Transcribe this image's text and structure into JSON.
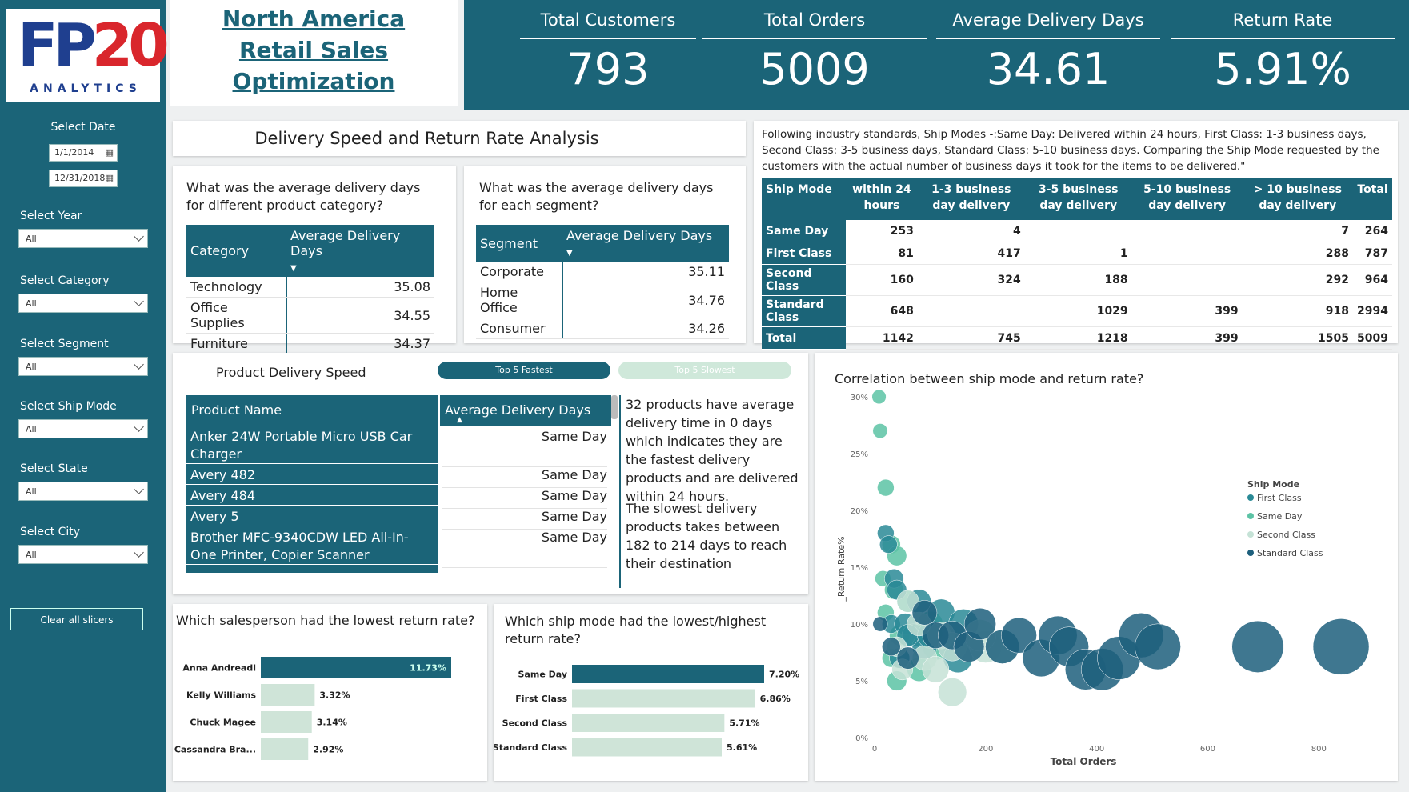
{
  "logo": {
    "part1": "FP",
    "part2": "20",
    "sub": "ANALYTICS"
  },
  "title": {
    "line1": "North America ",
    "line2": "Retail Sales",
    "line3": "Optimization"
  },
  "kpis": [
    {
      "label": "Total Customers",
      "value": "793"
    },
    {
      "label": "Total Orders",
      "value": "5009"
    },
    {
      "label": "Average Delivery Days",
      "value": "34.61"
    },
    {
      "label": "Return Rate",
      "value": "5.91%"
    }
  ],
  "sidebar": {
    "date_label": "Select Date",
    "date_from": "1/1/2014",
    "date_to": "12/31/2018",
    "filters": [
      {
        "label": "Select Year",
        "value": "All"
      },
      {
        "label": "Select Category",
        "value": "All"
      },
      {
        "label": "Select Segment",
        "value": "All"
      },
      {
        "label": "Select Ship Mode",
        "value": "All"
      },
      {
        "label": "Select State",
        "value": "All"
      },
      {
        "label": "Select City",
        "value": "All"
      }
    ],
    "clear_label": "Clear all slicers"
  },
  "section_title": "Delivery Speed and Return Rate Analysis",
  "category_card": {
    "title": "What was the average delivery days for different product category?",
    "headers": [
      "Category",
      "Average Delivery Days"
    ],
    "rows": [
      {
        "name": "Technology",
        "value": "35.08"
      },
      {
        "name": "Office Supplies",
        "value": "34.55"
      },
      {
        "name": "Furniture",
        "value": "34.37"
      }
    ]
  },
  "segment_card": {
    "title": "What was the average delivery days for each segment?",
    "headers": [
      "Segment",
      "Average Delivery Days"
    ],
    "rows": [
      {
        "name": "Corporate",
        "value": "35.11"
      },
      {
        "name": "Home Office",
        "value": "34.76"
      },
      {
        "name": "Consumer",
        "value": "34.26"
      }
    ]
  },
  "ship_note": "Following industry standards, Ship Modes -:Same Day: Delivered within 24 hours, First Class: 1-3 business days, Second Class: 3-5 business days, Standard Class: 5-10 business days. Comparing the Ship Mode requested by the customers with the actual number of business days it took for the items to be delivered.\"",
  "ship_table": {
    "headers": [
      "Ship Mode",
      "within 24 hours",
      "1-3 business day delivery",
      "3-5 business day delivery",
      "5-10 business day delivery",
      "> 10 business day delivery",
      "Total"
    ],
    "rows": [
      {
        "mode": "Same Day",
        "cells": [
          "253",
          "4",
          "",
          "",
          "7",
          "264"
        ]
      },
      {
        "mode": "First Class",
        "cells": [
          "81",
          "417",
          "1",
          "",
          "288",
          "787"
        ]
      },
      {
        "mode": "Second Class",
        "cells": [
          "160",
          "324",
          "188",
          "",
          "292",
          "964"
        ]
      },
      {
        "mode": "Standard Class",
        "cells": [
          "648",
          "",
          "1029",
          "399",
          "918",
          "2994"
        ]
      },
      {
        "mode": "Total",
        "cells": [
          "1142",
          "745",
          "1218",
          "399",
          "1505",
          "5009"
        ]
      }
    ]
  },
  "product_speed": {
    "title": "Product Delivery Speed",
    "btn_fastest": "Top 5 Fastest",
    "btn_slowest": "Top 5 Slowest",
    "headers": [
      "Product Name",
      "Average Delivery Days"
    ],
    "rows": [
      {
        "name": "Anker 24W Portable Micro USB Car Charger",
        "value": "Same Day"
      },
      {
        "name": "Avery 482",
        "value": "Same Day"
      },
      {
        "name": "Avery 484",
        "value": "Same Day"
      },
      {
        "name": "Avery 5",
        "value": "Same Day"
      },
      {
        "name": "Brother MFC-9340CDW LED All-In-One Printer, Copier Scanner",
        "value": "Same Day"
      }
    ],
    "note1": "32 products have average delivery time in 0 days which indicates they are the fastest delivery products  and are delivered within 24 hours.",
    "note2": "The slowest delivery products takes between 182 to 214 days to reach their destination"
  },
  "salesperson_chart": {
    "title": "Which salesperson had the lowest return rate?",
    "chart_data": {
      "type": "bar",
      "categories": [
        "Anna Andreadi",
        "Kelly Williams",
        "Chuck Magee",
        "Cassandra Bra..."
      ],
      "values": [
        11.73,
        3.32,
        3.14,
        2.92
      ],
      "labels": [
        "11.73%",
        "3.32%",
        "3.14%",
        "2.92%"
      ]
    }
  },
  "shipmode_chart": {
    "title": "Which ship mode had the lowest/highest return rate?",
    "chart_data": {
      "type": "bar",
      "categories": [
        "Same Day",
        "First Class",
        "Second Class",
        "Standard Class"
      ],
      "values": [
        7.2,
        6.86,
        5.71,
        5.61
      ],
      "labels": [
        "7.20%",
        "6.86%",
        "5.71%",
        "5.61%"
      ]
    }
  },
  "scatter": {
    "title": "Correlation between ship mode and return rate?",
    "chart_data": {
      "type": "scatter",
      "xlabel": "Total Orders",
      "ylabel": "_Return Rate%",
      "xlim": [
        0,
        850
      ],
      "ylim": [
        0,
        30
      ],
      "xticks": [
        "0",
        "200",
        "400",
        "600",
        "800"
      ],
      "yticks": [
        "0%",
        "5%",
        "10%",
        "15%",
        "20%",
        "25%",
        "30%"
      ],
      "legend_title": "Ship Mode",
      "legend": [
        {
          "name": "First Class",
          "color": "#2a8a96"
        },
        {
          "name": "Same Day",
          "color": "#5cc3a5"
        },
        {
          "name": "Second Class",
          "color": "#c5e2d6"
        },
        {
          "name": "Standard Class",
          "color": "#1d5f7c"
        }
      ],
      "series": [
        {
          "name": "Same Day",
          "points": [
            [
              8,
              30
            ],
            [
              10,
              27
            ],
            [
              20,
              22
            ],
            [
              30,
              17
            ],
            [
              15,
              14
            ],
            [
              40,
              16
            ],
            [
              35,
              13
            ],
            [
              60,
              12
            ],
            [
              20,
              11
            ],
            [
              45,
              9
            ],
            [
              30,
              7
            ],
            [
              80,
              6
            ],
            [
              110,
              8
            ],
            [
              40,
              5
            ],
            [
              100,
              10
            ]
          ]
        },
        {
          "name": "First Class",
          "points": [
            [
              20,
              18
            ],
            [
              25,
              17
            ],
            [
              35,
              14
            ],
            [
              40,
              13
            ],
            [
              30,
              10
            ],
            [
              55,
              10
            ],
            [
              70,
              9
            ],
            [
              90,
              8
            ],
            [
              45,
              7
            ],
            [
              60,
              9
            ],
            [
              120,
              11
            ],
            [
              140,
              8
            ],
            [
              150,
              7
            ],
            [
              80,
              12
            ],
            [
              100,
              9
            ],
            [
              160,
              10
            ]
          ]
        },
        {
          "name": "Second Class",
          "points": [
            [
              60,
              12
            ],
            [
              80,
              10
            ],
            [
              40,
              8
            ],
            [
              120,
              9
            ],
            [
              140,
              8
            ],
            [
              170,
              8
            ],
            [
              200,
              8
            ],
            [
              230,
              8
            ],
            [
              50,
              6
            ],
            [
              90,
              7
            ],
            [
              140,
              4
            ],
            [
              110,
              6
            ],
            [
              190,
              9
            ]
          ]
        },
        {
          "name": "Standard Class",
          "points": [
            [
              10,
              10
            ],
            [
              30,
              8
            ],
            [
              60,
              7
            ],
            [
              90,
              11
            ],
            [
              110,
              9
            ],
            [
              140,
              9
            ],
            [
              170,
              8
            ],
            [
              190,
              10
            ],
            [
              230,
              8
            ],
            [
              260,
              9
            ],
            [
              300,
              7
            ],
            [
              330,
              9
            ],
            [
              350,
              8
            ],
            [
              380,
              6
            ],
            [
              410,
              6
            ],
            [
              440,
              7
            ],
            [
              480,
              9
            ],
            [
              510,
              8
            ],
            [
              690,
              8
            ],
            [
              840,
              8
            ]
          ]
        }
      ]
    }
  }
}
